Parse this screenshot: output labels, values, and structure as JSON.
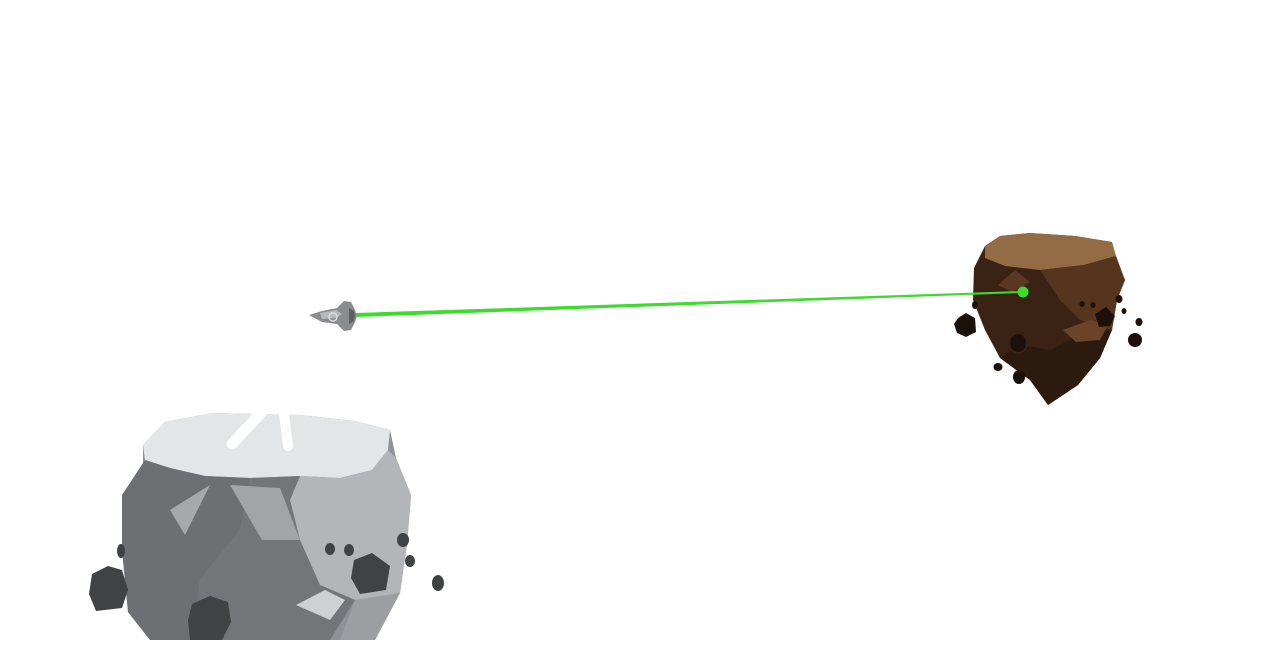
{
  "scene": {
    "background_color": "#ffffff",
    "laser_color": "#3ddb2e",
    "objects": [
      {
        "name": "spaceship",
        "color": "#8a8c90"
      },
      {
        "name": "brown-asteroid",
        "color": "#4a2c1a",
        "top_color": "#936b44"
      },
      {
        "name": "gray-asteroid",
        "color": "#8f9196",
        "top_color": "#e4e5e7"
      }
    ],
    "laser_target_dot": {
      "color": "#3ddb2e"
    }
  }
}
